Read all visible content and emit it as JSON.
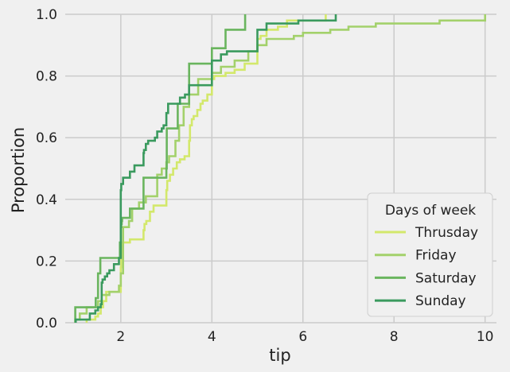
{
  "chart_data": {
    "type": "line",
    "drawstyle": "steps-post",
    "xlabel": "tip",
    "ylabel": "Proportion",
    "xlim": [
      0.78,
      10.25
    ],
    "ylim": [
      0.0,
      1.0
    ],
    "xticks": [
      2,
      4,
      6,
      8,
      10
    ],
    "yticks": [
      0.0,
      0.2,
      0.4,
      0.6,
      0.8,
      1.0
    ],
    "x_tick_labels": [
      "2",
      "4",
      "6",
      "8",
      "10"
    ],
    "y_tick_labels": [
      "0.0",
      "0.2",
      "0.4",
      "0.6",
      "0.8",
      "1.0"
    ],
    "grid": true,
    "legend": {
      "title": "Days of week",
      "placement": "lower-right"
    },
    "series": [
      {
        "name": "Thrusday",
        "color": "#d3e86b",
        "points": [
          [
            1.25,
            0.01
          ],
          [
            1.44,
            0.02
          ],
          [
            1.5,
            0.03
          ],
          [
            1.56,
            0.05
          ],
          [
            1.61,
            0.07
          ],
          [
            1.68,
            0.1
          ],
          [
            2.0,
            0.18
          ],
          [
            2.01,
            0.26
          ],
          [
            2.2,
            0.27
          ],
          [
            2.5,
            0.3
          ],
          [
            2.52,
            0.32
          ],
          [
            2.56,
            0.33
          ],
          [
            2.64,
            0.36
          ],
          [
            2.72,
            0.38
          ],
          [
            3.0,
            0.43
          ],
          [
            3.02,
            0.46
          ],
          [
            3.08,
            0.48
          ],
          [
            3.15,
            0.5
          ],
          [
            3.23,
            0.52
          ],
          [
            3.3,
            0.53
          ],
          [
            3.4,
            0.54
          ],
          [
            3.5,
            0.59
          ],
          [
            3.52,
            0.64
          ],
          [
            3.56,
            0.66
          ],
          [
            3.6,
            0.67
          ],
          [
            3.68,
            0.69
          ],
          [
            3.75,
            0.71
          ],
          [
            3.8,
            0.72
          ],
          [
            3.9,
            0.74
          ],
          [
            4.0,
            0.79
          ],
          [
            4.05,
            0.8
          ],
          [
            4.3,
            0.81
          ],
          [
            4.5,
            0.82
          ],
          [
            4.72,
            0.84
          ],
          [
            5.0,
            0.92
          ],
          [
            5.07,
            0.93
          ],
          [
            5.2,
            0.95
          ],
          [
            5.45,
            0.96
          ],
          [
            5.65,
            0.98
          ],
          [
            6.5,
            1.0
          ]
        ]
      },
      {
        "name": "Friday",
        "color": "#a3d16b",
        "points": [
          [
            1.0,
            0.01
          ],
          [
            1.1,
            0.03
          ],
          [
            1.25,
            0.05
          ],
          [
            1.5,
            0.07
          ],
          [
            1.58,
            0.09
          ],
          [
            1.75,
            0.1
          ],
          [
            1.96,
            0.12
          ],
          [
            2.0,
            0.16
          ],
          [
            2.05,
            0.31
          ],
          [
            2.18,
            0.33
          ],
          [
            2.25,
            0.37
          ],
          [
            2.4,
            0.39
          ],
          [
            2.55,
            0.41
          ],
          [
            2.8,
            0.48
          ],
          [
            2.9,
            0.5
          ],
          [
            3.0,
            0.52
          ],
          [
            3.06,
            0.54
          ],
          [
            3.2,
            0.59
          ],
          [
            3.28,
            0.64
          ],
          [
            3.38,
            0.7
          ],
          [
            3.5,
            0.74
          ],
          [
            3.7,
            0.79
          ],
          [
            4.0,
            0.81
          ],
          [
            4.2,
            0.83
          ],
          [
            4.5,
            0.85
          ],
          [
            4.8,
            0.88
          ],
          [
            5.0,
            0.9
          ],
          [
            5.2,
            0.92
          ],
          [
            5.8,
            0.93
          ],
          [
            6.0,
            0.94
          ],
          [
            6.6,
            0.95
          ],
          [
            7.0,
            0.96
          ],
          [
            7.6,
            0.97
          ],
          [
            9.0,
            0.98
          ],
          [
            10.0,
            1.0
          ]
        ]
      },
      {
        "name": "Saturday",
        "color": "#6ab55e",
        "points": [
          [
            1.0,
            0.05
          ],
          [
            1.45,
            0.08
          ],
          [
            1.5,
            0.16
          ],
          [
            1.55,
            0.21
          ],
          [
            1.98,
            0.26
          ],
          [
            2.0,
            0.31
          ],
          [
            2.01,
            0.32
          ],
          [
            2.02,
            0.33
          ],
          [
            2.03,
            0.34
          ],
          [
            2.2,
            0.37
          ],
          [
            2.5,
            0.47
          ],
          [
            3.0,
            0.5
          ],
          [
            3.01,
            0.63
          ],
          [
            3.25,
            0.71
          ],
          [
            3.5,
            0.84
          ],
          [
            4.0,
            0.89
          ],
          [
            4.3,
            0.95
          ],
          [
            4.73,
            1.0
          ]
        ]
      },
      {
        "name": "Sunday",
        "color": "#3a9a5e",
        "points": [
          [
            1.01,
            0.01
          ],
          [
            1.32,
            0.03
          ],
          [
            1.44,
            0.04
          ],
          [
            1.5,
            0.05
          ],
          [
            1.56,
            0.06
          ],
          [
            1.58,
            0.13
          ],
          [
            1.6,
            0.14
          ],
          [
            1.65,
            0.15
          ],
          [
            1.7,
            0.16
          ],
          [
            1.75,
            0.17
          ],
          [
            1.85,
            0.19
          ],
          [
            1.96,
            0.21
          ],
          [
            2.0,
            0.43
          ],
          [
            2.01,
            0.45
          ],
          [
            2.05,
            0.47
          ],
          [
            2.2,
            0.49
          ],
          [
            2.3,
            0.51
          ],
          [
            2.5,
            0.55
          ],
          [
            2.51,
            0.56
          ],
          [
            2.55,
            0.58
          ],
          [
            2.6,
            0.59
          ],
          [
            2.75,
            0.6
          ],
          [
            2.8,
            0.62
          ],
          [
            2.9,
            0.63
          ],
          [
            2.94,
            0.64
          ],
          [
            3.0,
            0.68
          ],
          [
            3.04,
            0.71
          ],
          [
            3.3,
            0.73
          ],
          [
            3.41,
            0.74
          ],
          [
            3.5,
            0.77
          ],
          [
            4.0,
            0.85
          ],
          [
            4.2,
            0.87
          ],
          [
            4.33,
            0.88
          ],
          [
            5.0,
            0.95
          ],
          [
            5.2,
            0.97
          ],
          [
            5.9,
            0.98
          ],
          [
            6.72,
            1.0
          ]
        ]
      }
    ]
  }
}
